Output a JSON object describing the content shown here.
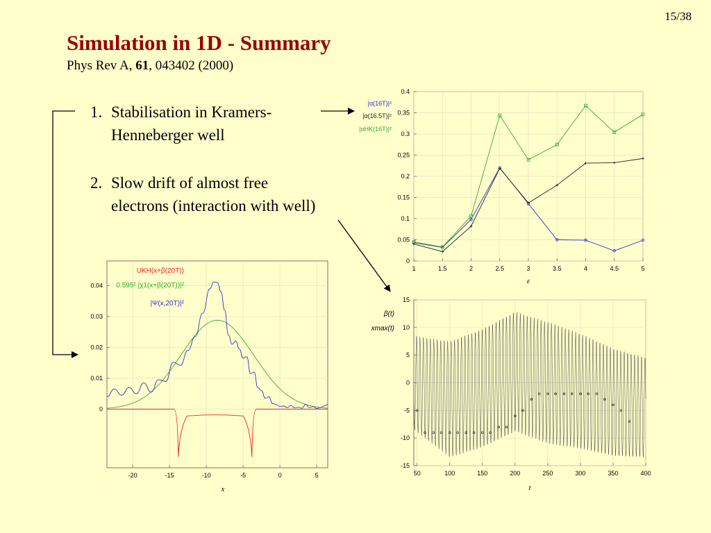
{
  "slide_number": "15/38",
  "title": "Simulation in 1D - Summary",
  "reference": {
    "journal": "Phys Rev A, ",
    "volume": "61",
    "rest": ", 043402 (2000)"
  },
  "points": [
    {
      "num": "1.",
      "line1": "Stabilisation in Kramers-",
      "line2": "Henneberger well"
    },
    {
      "num": "2.",
      "line1": "Slow drift of almost free",
      "line2": "electrons (interaction with well)"
    }
  ],
  "colors": {
    "title": "#990000",
    "blue": "#3333cc",
    "green": "#33aa33",
    "black": "#222222",
    "red": "#ee2222"
  },
  "chart_data": [
    {
      "type": "line",
      "xlabel": "ε",
      "xlim": [
        1,
        5
      ],
      "ylim": [
        0,
        0.4
      ],
      "x_ticks": [
        "1",
        "1.5",
        "2",
        "2.5",
        "3",
        "3.5",
        "4",
        "4.5",
        "5"
      ],
      "y_ticks": [
        "0",
        "0.05",
        "0.1",
        "0.15",
        "0.2",
        "0.25",
        "0.3",
        "0.35",
        "0.4"
      ],
      "legend": [
        "|α(16T)|²",
        "|α(16.5T)|²",
        "|αHK(16T)|²"
      ],
      "x": [
        1,
        1.5,
        2,
        2.5,
        3,
        3.5,
        4,
        4.5,
        5
      ],
      "series": [
        {
          "values": [
            0.043,
            0.032,
            0.098,
            0.22,
            0.135,
            0.05,
            0.049,
            0.024,
            0.049
          ]
        },
        {
          "values": [
            0.04,
            0.022,
            0.082,
            0.219,
            0.137,
            0.179,
            0.231,
            0.232,
            0.242
          ]
        },
        {
          "values": [
            0.045,
            0.033,
            0.106,
            0.344,
            0.239,
            0.275,
            0.367,
            0.304,
            0.346
          ]
        }
      ]
    },
    {
      "type": "line",
      "xlabel": "t",
      "xlim": [
        45,
        400
      ],
      "ylim": [
        -15,
        15
      ],
      "x_ticks": [
        "50",
        "100",
        "150",
        "200",
        "250",
        "300",
        "350",
        "400"
      ],
      "y_ticks": [
        "-15",
        "-10",
        "-5",
        "0",
        "5",
        "10",
        "15"
      ],
      "legend": [
        "β(t)",
        "xmax(t)"
      ],
      "oscillation": {
        "period": 5.3,
        "envelope": [
          {
            "t": 45,
            "amp": 8.5
          },
          {
            "t": 100,
            "amp": 10.5
          },
          {
            "t": 255,
            "amp": 11
          },
          {
            "t": 400,
            "amp": 9
          }
        ],
        "drift": [
          {
            "t": 45,
            "c": 0
          },
          {
            "t": 100,
            "c": -3
          },
          {
            "t": 150,
            "c": -1
          },
          {
            "t": 200,
            "c": 2
          },
          {
            "t": 250,
            "c": 0
          },
          {
            "t": 300,
            "c": -1.5
          },
          {
            "t": 350,
            "c": -3.5
          },
          {
            "t": 400,
            "c": -4.5
          }
        ]
      },
      "xmax_points": {
        "x": [
          50,
          62,
          75,
          87,
          100,
          112,
          125,
          137,
          150,
          162,
          175,
          187,
          200,
          212,
          225,
          237,
          250,
          262,
          275,
          287,
          300,
          312,
          325,
          337,
          350,
          362,
          375
        ],
        "y": [
          -5,
          -9,
          -9,
          -9,
          -9,
          -9,
          -9,
          -9,
          -9,
          -9,
          -8,
          -8,
          -6,
          -5,
          -3,
          -2,
          -2,
          -2,
          -2,
          -2,
          -2,
          -2,
          -2,
          -3,
          -4,
          -5,
          -7
        ]
      }
    },
    {
      "type": "line",
      "xlabel": "x",
      "xlim": [
        -23.5,
        6.5
      ],
      "ylim": [
        -0.019,
        0.048
      ],
      "x_ticks": [
        "-20",
        "-15",
        "-10",
        "-5",
        "0",
        "5"
      ],
      "y_ticks": [
        "0",
        "0.01",
        "0.02",
        "0.03",
        "0.04"
      ],
      "legend": [
        "UKH(x+β(20T))",
        "0.595² |χ1(x+β(20T))|²",
        "|Ψ(x,20T)|²"
      ],
      "gaussian": {
        "center": -8.5,
        "height": 0.0288,
        "width": 7
      },
      "well": {
        "wall_left": -13.8,
        "wall_right": -3.8,
        "floor": -0.0022,
        "top": 0.0,
        "depth": -0.0155
      },
      "psi": {
        "x": [
          -23.5,
          -22.5,
          -21.5,
          -20.5,
          -19.5,
          -18.5,
          -17.5,
          -16.5,
          -15.5,
          -14.5,
          -13.5,
          -12.5,
          -11.5,
          -10.5,
          -9.5,
          -9,
          -8.5,
          -8,
          -7.5,
          -7,
          -6.5,
          -6,
          -5.5,
          -5,
          -4.5,
          -4,
          -3.5,
          -3,
          -2.5,
          -2,
          -1.5,
          -1,
          -0.5,
          0,
          0.5,
          1,
          1.5,
          2,
          2.5,
          3,
          3.5,
          4,
          4.5,
          5,
          5.5,
          6,
          6.5
        ],
        "y": [
          0.004,
          0.0065,
          0.0045,
          0.007,
          0.005,
          0.0085,
          0.0055,
          0.0095,
          0.009,
          0.0152,
          0.0142,
          0.019,
          0.0235,
          0.031,
          0.039,
          0.0412,
          0.041,
          0.038,
          0.032,
          0.024,
          0.021,
          0.022,
          0.0195,
          0.0165,
          0.017,
          0.0115,
          0.012,
          0.007,
          0.006,
          0.0035,
          0.004,
          0.0018,
          0.0015,
          0.0008,
          0.001,
          0.0005,
          0.0012,
          0.0004,
          0.0006,
          0.0003,
          0.0015,
          0.0005,
          0.0008,
          0.0002,
          0.0005,
          0.001,
          0.0015
        ]
      }
    }
  ]
}
